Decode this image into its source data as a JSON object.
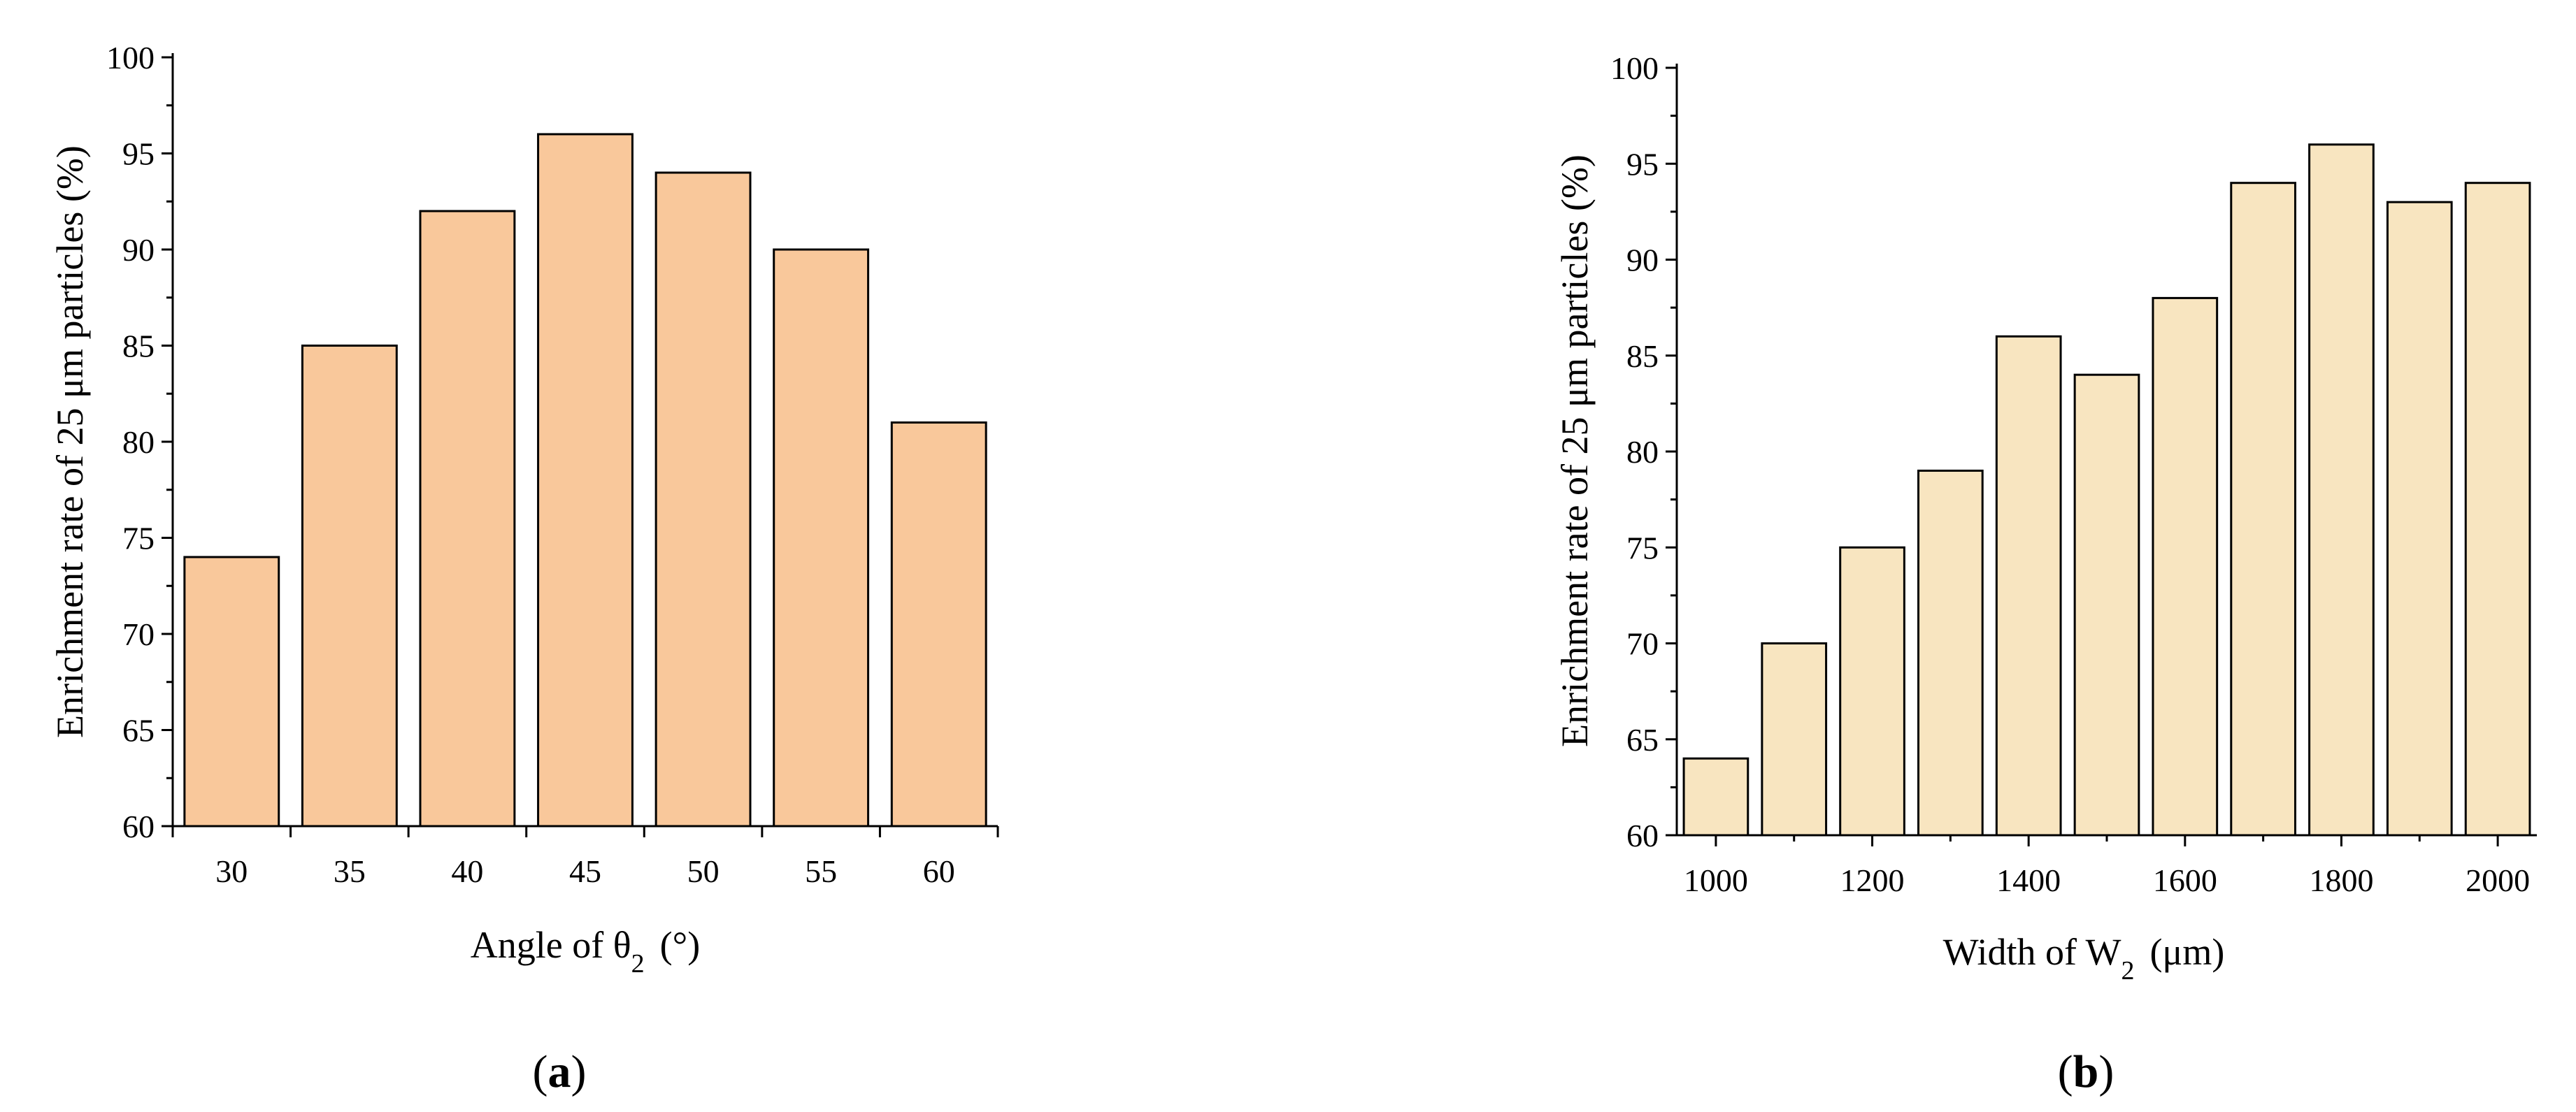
{
  "chart_data": [
    {
      "type": "bar",
      "panel_label": "a",
      "categories": [
        "30",
        "35",
        "40",
        "45",
        "50",
        "55",
        "60"
      ],
      "values": [
        74,
        85,
        92,
        96,
        94,
        90,
        81
      ],
      "ylabel": "Enrichment rate of 25 μm particles (%)",
      "xlabel": {
        "main": "Angle of θ",
        "sub": "2",
        "unit": "(°)"
      },
      "ylim": [
        60,
        100
      ],
      "yticks": [
        "60",
        "65",
        "70",
        "75",
        "80",
        "85",
        "90",
        "95",
        "100"
      ],
      "bar_color": "#F9C89B",
      "grid": false
    },
    {
      "type": "bar",
      "panel_label": "b",
      "x": [
        1000,
        1100,
        1200,
        1300,
        1400,
        1500,
        1600,
        1700,
        1800,
        1900,
        2000
      ],
      "values": [
        64,
        70,
        75,
        79,
        86,
        84,
        88,
        94,
        96,
        93,
        94
      ],
      "xticks": [
        "1000",
        "1200",
        "1400",
        "1600",
        "1800",
        "2000"
      ],
      "ylabel": "Enrichment rate of 25 μm particles (%)",
      "xlabel": {
        "main": "Width of W",
        "sub": "2",
        "unit": "(μm)"
      },
      "ylim": [
        60,
        100
      ],
      "yticks": [
        "60",
        "65",
        "70",
        "75",
        "80",
        "85",
        "90",
        "95",
        "100"
      ],
      "bar_color": "#F8E5C0",
      "grid": false
    }
  ]
}
